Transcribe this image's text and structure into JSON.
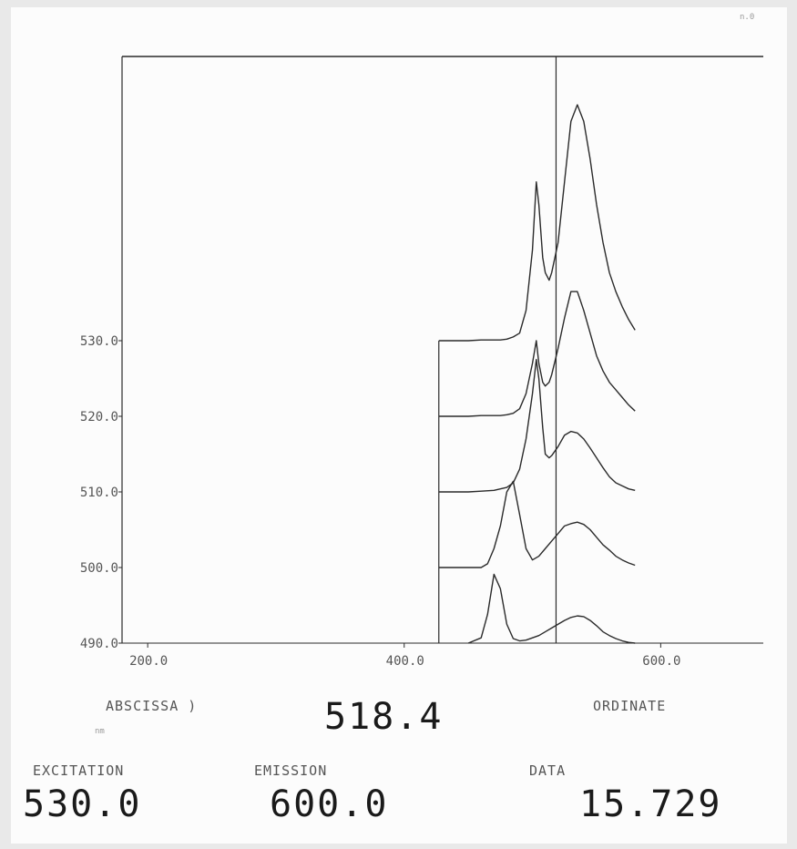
{
  "chart_data": {
    "type": "line",
    "title": "",
    "x_ticks": [
      "200.0",
      "400.0",
      "600.0"
    ],
    "y_ticks": [
      "490.0",
      "500.0",
      "510.0",
      "520.0",
      "530.0"
    ],
    "xlim": [
      180,
      680
    ],
    "ylim": [
      490,
      530
    ],
    "cursor_x": 518.4,
    "x_start": 450,
    "x_end": 580,
    "series": [
      {
        "offset": 490,
        "scatter_peak": 490,
        "x": [
          450,
          460,
          465,
          470,
          475,
          480,
          485,
          490,
          495,
          500,
          505,
          510,
          515,
          520,
          525,
          530,
          535,
          540,
          545,
          550,
          555,
          560,
          565,
          570,
          575,
          580
        ],
        "y": [
          0.0,
          0.7,
          3.8,
          9.1,
          7.2,
          2.5,
          0.6,
          0.3,
          0.4,
          0.7,
          1.0,
          1.5,
          2.0,
          2.5,
          3.0,
          3.4,
          3.6,
          3.5,
          3.0,
          2.3,
          1.5,
          1.0,
          0.6,
          0.3,
          0.1,
          0.0
        ]
      },
      {
        "offset": 500,
        "scatter_peak": 500,
        "x": [
          450,
          460,
          465,
          470,
          475,
          480,
          485,
          490,
          495,
          500,
          505,
          510,
          515,
          520,
          525,
          530,
          535,
          540,
          545,
          550,
          555,
          560,
          565,
          570,
          575,
          580
        ],
        "y": [
          0.0,
          0.0,
          0.5,
          2.5,
          5.5,
          10.0,
          11.4,
          7.0,
          2.5,
          1.0,
          1.5,
          2.5,
          3.5,
          4.5,
          5.5,
          5.8,
          6.0,
          5.7,
          5.0,
          4.0,
          3.0,
          2.3,
          1.5,
          1.0,
          0.6,
          0.3
        ]
      },
      {
        "offset": 510,
        "scatter_peak": 510,
        "x": [
          450,
          460,
          470,
          475,
          480,
          485,
          490,
          495,
          500,
          503,
          505,
          508,
          510,
          513,
          515,
          520,
          525,
          530,
          535,
          540,
          545,
          550,
          555,
          560,
          565,
          570,
          575,
          580
        ],
        "y": [
          0.0,
          0.1,
          0.2,
          0.4,
          0.6,
          1.2,
          3.0,
          7.0,
          13.0,
          17.5,
          15.0,
          8.5,
          5.0,
          4.5,
          4.8,
          6.0,
          7.5,
          8.0,
          7.8,
          7.0,
          5.8,
          4.5,
          3.2,
          2.0,
          1.2,
          0.8,
          0.4,
          0.2
        ]
      },
      {
        "offset": 520,
        "scatter_peak": 520,
        "x": [
          450,
          460,
          470,
          475,
          480,
          485,
          490,
          495,
          500,
          503,
          505,
          508,
          510,
          513,
          515,
          520,
          525,
          530,
          535,
          540,
          545,
          550,
          555,
          560,
          565,
          570,
          575,
          580
        ],
        "y": [
          0.0,
          0.1,
          0.1,
          0.1,
          0.2,
          0.4,
          1.0,
          3.0,
          7.0,
          10.0,
          7.0,
          4.5,
          4.0,
          4.5,
          5.5,
          9.0,
          13.0,
          16.5,
          16.5,
          14.0,
          11.0,
          8.0,
          6.0,
          4.5,
          3.5,
          2.5,
          1.5,
          0.7
        ]
      },
      {
        "offset": 530,
        "scatter_peak": 530,
        "x": [
          450,
          460,
          470,
          475,
          480,
          485,
          490,
          495,
          500,
          503,
          505,
          508,
          510,
          513,
          515,
          520,
          525,
          530,
          535,
          540,
          545,
          550,
          555,
          560,
          565,
          570,
          575,
          580
        ],
        "y": [
          0.0,
          0.1,
          0.1,
          0.1,
          0.2,
          0.5,
          1.0,
          4.0,
          12.0,
          21.0,
          18.0,
          11.0,
          9.0,
          8.0,
          9.0,
          13.0,
          21.0,
          29.0,
          31.2,
          29.0,
          24.0,
          18.0,
          13.0,
          9.0,
          6.5,
          4.5,
          2.8,
          1.4
        ]
      }
    ]
  },
  "readout": {
    "abscissa_label": "ABSCISSA )",
    "abscissa_value": "518.4",
    "ordinate_label": "ORDINATE",
    "excitation_label": "EXCITATION",
    "excitation_value": "530.0",
    "emission_label": "EMISSION",
    "emission_value": "600.0",
    "data_label": "DATA",
    "data_value": "15.729",
    "unit_mark": "nm",
    "corner_mark": "n.0"
  },
  "colors": {
    "ink": "#2a2a2a",
    "paper": "#fcfcfc",
    "border": "#e9e9e9"
  }
}
